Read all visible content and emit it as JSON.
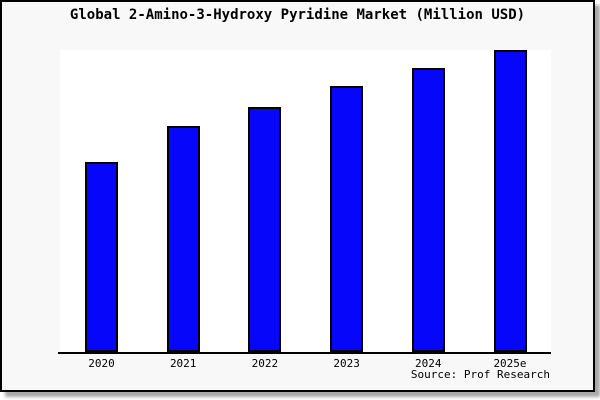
{
  "card": {
    "background": "#f8f8f8",
    "border_color": "#000000",
    "shadow_color": "#a9a9a9"
  },
  "header": {
    "title": "Global 2-Amino-3-Hydroxy Pyridine Market (Million USD)"
  },
  "footer": {
    "source_text": "Source: Prof Research"
  },
  "colors": {
    "bar_fill": "#0606fb",
    "bar_border": "#000000",
    "axis": "#000000",
    "plot_background": "#ffffff"
  },
  "chart_data": {
    "type": "bar",
    "title": "Global 2-Amino-3-Hydroxy Pyridine Market (Million USD)",
    "categories": [
      "2020",
      "2021",
      "2022",
      "2023",
      "2024",
      "2025e"
    ],
    "values": [
      63,
      75,
      81,
      88,
      94,
      100
    ],
    "xlabel": "",
    "ylabel": "",
    "ylim": [
      0,
      100
    ],
    "y_axis_visible": false,
    "grid": false,
    "legend": false,
    "annotations": [
      "Source: Prof Research"
    ]
  }
}
